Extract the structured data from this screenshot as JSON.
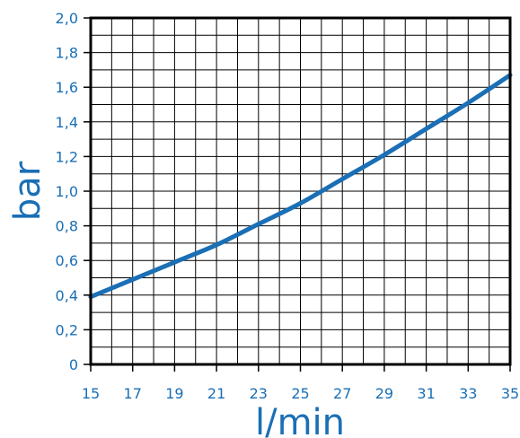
{
  "chart_data": {
    "type": "line",
    "xlabel": "l/min",
    "ylabel": "bar",
    "xlim": [
      15,
      35
    ],
    "ylim": [
      0,
      2.0
    ],
    "x_ticks": [
      15,
      17,
      19,
      21,
      23,
      25,
      27,
      29,
      31,
      33,
      35
    ],
    "x_tick_labels": [
      "15",
      "17",
      "19",
      "21",
      "23",
      "25",
      "27",
      "29",
      "31",
      "33",
      "35"
    ],
    "y_ticks": [
      0,
      0.2,
      0.4,
      0.6,
      0.8,
      1.0,
      1.2,
      1.4,
      1.6,
      1.8,
      2.0
    ],
    "y_tick_labels": [
      "0",
      "0,2",
      "0,4",
      "0,6",
      "0,8",
      "1,0",
      "1,2",
      "1,4",
      "1,6",
      "1,8",
      "2,0"
    ],
    "grid": true,
    "series": [
      {
        "x": [
          15,
          17,
          19,
          21,
          23,
          25,
          27,
          29,
          31,
          33,
          35
        ],
        "y": [
          0.39,
          0.49,
          0.59,
          0.69,
          0.81,
          0.93,
          1.07,
          1.21,
          1.36,
          1.51,
          1.67
        ],
        "color": "#1a6fb5"
      }
    ],
    "colors": {
      "line": "#1a6fb5",
      "labels": "#1a6fb5",
      "grid": "#000000",
      "frame": "#000000"
    }
  }
}
